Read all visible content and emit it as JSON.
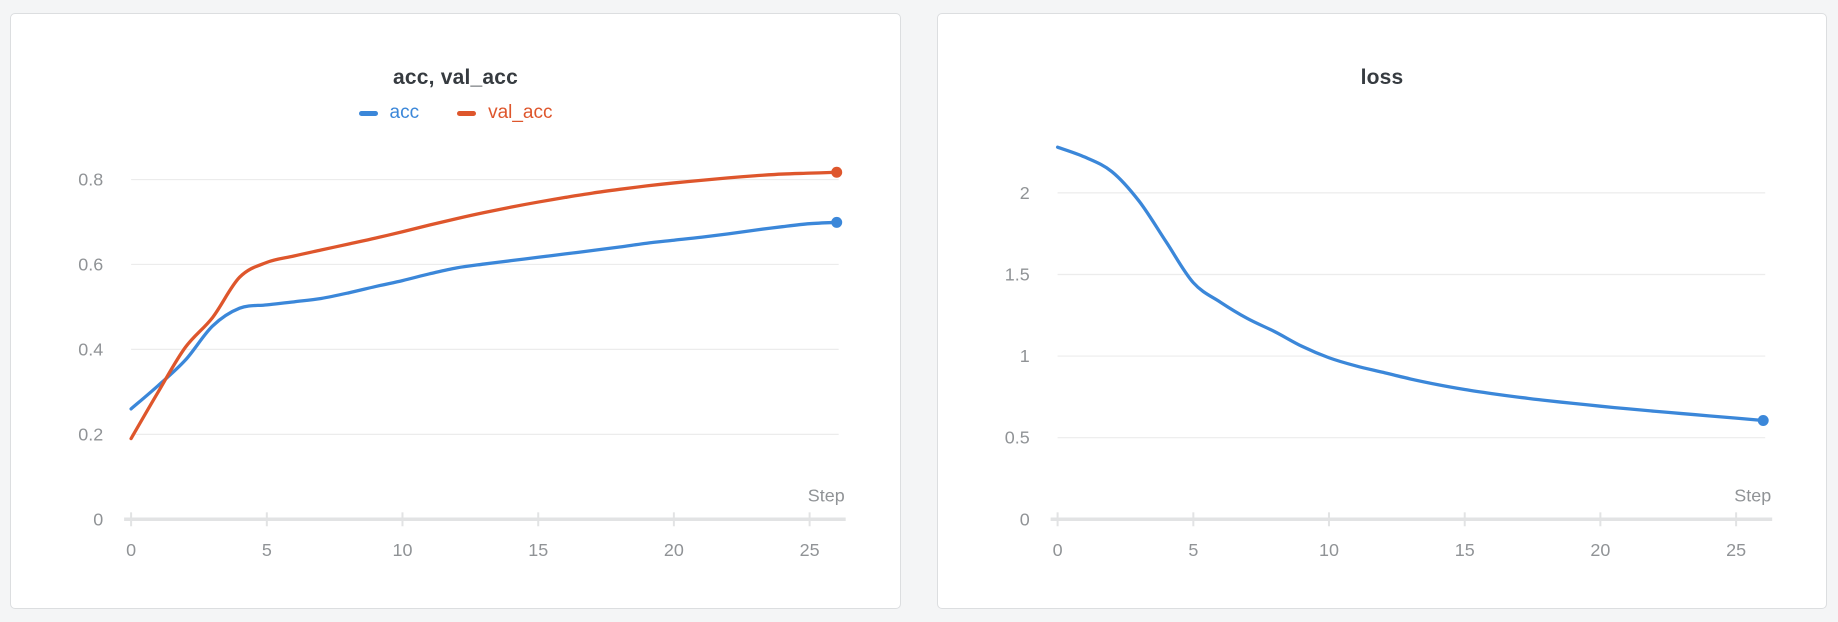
{
  "theme": {
    "page_background": "#f4f5f6",
    "card_background": "#ffffff",
    "card_border": "#dcdee0",
    "grid_color": "#ececec",
    "axis_color": "#e2e3e4",
    "tick_text_color": "#909396",
    "title_color": "#363b40"
  },
  "chart_data": [
    {
      "type": "line",
      "title": "acc, val_acc",
      "xlabel": "Step",
      "x": [
        0,
        1,
        2,
        3,
        4,
        5,
        6,
        7,
        8,
        9,
        10,
        11,
        12,
        13,
        14,
        15,
        16,
        17,
        18,
        19,
        20,
        21,
        22,
        23,
        24,
        25,
        26
      ],
      "series": [
        {
          "name": "acc",
          "color": "#3b87d9",
          "values": [
            0.26,
            0.315,
            0.375,
            0.455,
            0.497,
            0.505,
            0.512,
            0.52,
            0.533,
            0.548,
            0.562,
            0.578,
            0.592,
            0.601,
            0.609,
            0.617,
            0.625,
            0.633,
            0.641,
            0.65,
            0.657,
            0.664,
            0.672,
            0.681,
            0.689,
            0.696,
            0.699
          ]
        },
        {
          "name": "val_acc",
          "color": "#de562c",
          "values": [
            0.19,
            0.3,
            0.405,
            0.475,
            0.57,
            0.605,
            0.62,
            0.634,
            0.648,
            0.662,
            0.677,
            0.693,
            0.708,
            0.722,
            0.735,
            0.747,
            0.758,
            0.768,
            0.777,
            0.785,
            0.792,
            0.798,
            0.804,
            0.809,
            0.813,
            0.815,
            0.817
          ]
        }
      ],
      "xlim": [
        0,
        26
      ],
      "ylim": [
        0,
        0.88
      ],
      "x_ticks": [
        {
          "value": 0,
          "label": "0"
        },
        {
          "value": 5,
          "label": "5"
        },
        {
          "value": 10,
          "label": "10"
        },
        {
          "value": 15,
          "label": "15"
        },
        {
          "value": 20,
          "label": "20"
        },
        {
          "value": 25,
          "label": "25"
        }
      ],
      "y_ticks": [
        {
          "value": 0,
          "label": "0"
        },
        {
          "value": 0.2,
          "label": "0.2"
        },
        {
          "value": 0.4,
          "label": "0.4"
        },
        {
          "value": 0.6,
          "label": "0.6"
        },
        {
          "value": 0.8,
          "label": "0.8"
        }
      ],
      "legend_position": "top-center",
      "grid": true,
      "end_point_dot": true
    },
    {
      "type": "line",
      "title": "loss",
      "xlabel": "Step",
      "x": [
        0,
        1,
        2,
        3,
        4,
        5,
        6,
        7,
        8,
        9,
        10,
        11,
        12,
        13,
        14,
        15,
        16,
        17,
        18,
        19,
        20,
        21,
        22,
        23,
        24,
        25,
        26
      ],
      "series": [
        {
          "name": "loss",
          "color": "#3b87d9",
          "values": [
            2.28,
            2.22,
            2.13,
            1.95,
            1.7,
            1.45,
            1.33,
            1.23,
            1.15,
            1.06,
            0.99,
            0.94,
            0.9,
            0.86,
            0.825,
            0.795,
            0.77,
            0.748,
            0.728,
            0.71,
            0.693,
            0.677,
            0.662,
            0.648,
            0.634,
            0.62,
            0.605
          ]
        }
      ],
      "xlim": [
        0,
        26
      ],
      "ylim": [
        0,
        2.29
      ],
      "x_ticks": [
        {
          "value": 0,
          "label": "0"
        },
        {
          "value": 5,
          "label": "5"
        },
        {
          "value": 10,
          "label": "10"
        },
        {
          "value": 15,
          "label": "15"
        },
        {
          "value": 20,
          "label": "20"
        },
        {
          "value": 25,
          "label": "25"
        }
      ],
      "y_ticks": [
        {
          "value": 0,
          "label": "0"
        },
        {
          "value": 0.5,
          "label": "0.5"
        },
        {
          "value": 1,
          "label": "1"
        },
        {
          "value": 1.5,
          "label": "1.5"
        },
        {
          "value": 2,
          "label": "2"
        }
      ],
      "legend_position": "none",
      "grid": true,
      "end_point_dot": true
    }
  ]
}
